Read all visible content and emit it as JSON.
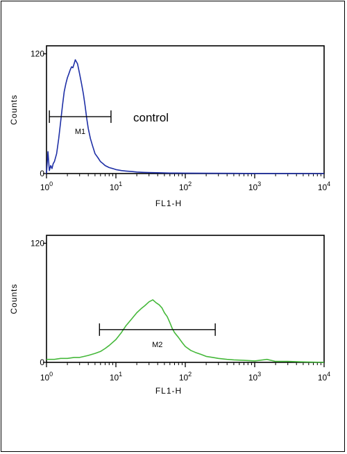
{
  "chart_data": [
    {
      "type": "line",
      "xlabel": "FL1-H",
      "ylabel": "Counts",
      "xscale": "log",
      "xlim": [
        1,
        10000
      ],
      "ylim": [
        0,
        128
      ],
      "xticks": [
        {
          "base": "10",
          "exp": "0",
          "value": 1
        },
        {
          "base": "10",
          "exp": "1",
          "value": 10
        },
        {
          "base": "10",
          "exp": "2",
          "value": 100
        },
        {
          "base": "10",
          "exp": "3",
          "value": 1000
        },
        {
          "base": "10",
          "exp": "4",
          "value": 10000
        }
      ],
      "yticks": [
        {
          "label": "0",
          "value": 0
        },
        {
          "label": "120",
          "value": 120
        }
      ],
      "annotation": "control",
      "line_color": "#1e2fa6",
      "marker": {
        "label": "M1",
        "x_start": 1.1,
        "x_end": 8.5,
        "y": 57
      },
      "series": [
        {
          "x": [
            1.0,
            1.05,
            1.1,
            1.15,
            1.2,
            1.25,
            1.3,
            1.4,
            1.5,
            1.6,
            1.7,
            1.8,
            1.9,
            2.0,
            2.1,
            2.2,
            2.3,
            2.4,
            2.5,
            2.6,
            2.7,
            2.8,
            2.9,
            3.0,
            3.2,
            3.4,
            3.6,
            3.8,
            4.0,
            4.3,
            4.6,
            5.0,
            5.5,
            6.0,
            6.5,
            7.0,
            8.0,
            9.0,
            10,
            12,
            14,
            17,
            20,
            25,
            30,
            40,
            60,
            100,
            200,
            500,
            1000,
            3000,
            10000
          ],
          "y": [
            0,
            22,
            3,
            8,
            5,
            10,
            12,
            20,
            35,
            52,
            68,
            82,
            90,
            96,
            100,
            104,
            107,
            106,
            110,
            114,
            112,
            110,
            105,
            100,
            90,
            80,
            68,
            55,
            45,
            35,
            28,
            20,
            16,
            12,
            10,
            8,
            6,
            5,
            4,
            3,
            2.5,
            2,
            1.5,
            1.2,
            1,
            0.8,
            0.5,
            0.4,
            0.3,
            0.2,
            0.1,
            0.1,
            0
          ]
        }
      ]
    },
    {
      "type": "line",
      "xlabel": "FL1-H",
      "ylabel": "Counts",
      "xscale": "log",
      "xlim": [
        1,
        10000
      ],
      "ylim": [
        0,
        128
      ],
      "xticks": [
        {
          "base": "10",
          "exp": "0",
          "value": 1
        },
        {
          "base": "10",
          "exp": "1",
          "value": 10
        },
        {
          "base": "10",
          "exp": "2",
          "value": 100
        },
        {
          "base": "10",
          "exp": "3",
          "value": 1000
        },
        {
          "base": "10",
          "exp": "4",
          "value": 10000
        }
      ],
      "yticks": [
        {
          "label": "0",
          "value": 0
        },
        {
          "label": "120",
          "value": 120
        }
      ],
      "line_color": "#45b83a",
      "marker": {
        "label": "M2",
        "x_start": 5.8,
        "x_end": 270,
        "y": 33
      },
      "series": [
        {
          "x": [
            1.0,
            1.3,
            1.6,
            2.0,
            2.5,
            3.0,
            3.5,
            4.0,
            5.0,
            6.0,
            7.0,
            8.0,
            10,
            12,
            14,
            17,
            20,
            23,
            26,
            30,
            34,
            38,
            42,
            46,
            50,
            55,
            60,
            65,
            70,
            80,
            90,
            100,
            120,
            140,
            170,
            200,
            250,
            300,
            400,
            500,
            700,
            1000,
            1500,
            2000,
            3000,
            5000,
            10000
          ],
          "y": [
            3,
            3,
            4,
            4,
            5,
            5,
            6,
            7,
            9,
            11,
            14,
            17,
            23,
            30,
            37,
            44,
            50,
            54,
            57,
            61,
            63,
            60,
            58,
            55,
            50,
            46,
            40,
            34,
            30,
            25,
            20,
            16,
            12,
            10,
            8,
            6,
            5,
            4,
            3,
            2.5,
            2,
            1.5,
            3,
            1,
            1,
            0.5,
            0
          ]
        }
      ]
    }
  ]
}
